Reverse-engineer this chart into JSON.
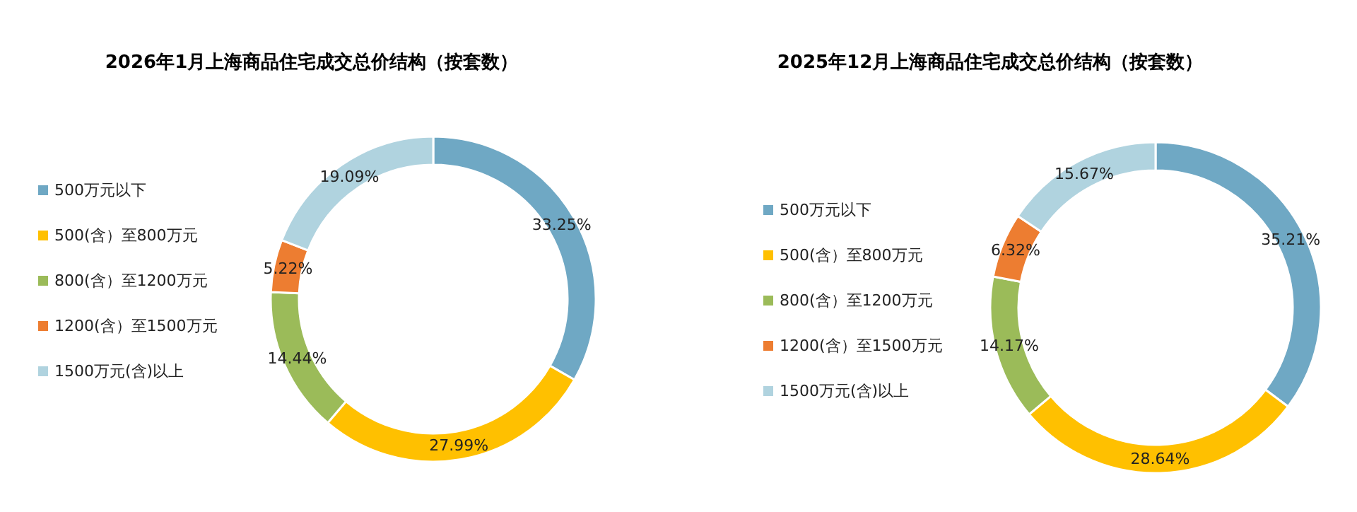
{
  "chart_data": [
    {
      "type": "donut",
      "title": "2026年1月上海商品住宅成交总价结构（按套数）",
      "categories": [
        "500万元以下",
        "500(含）至800万元",
        "800(含）至1200万元",
        "1200(含）至1500万元",
        "1500万元(含)以上"
      ],
      "values": [
        33.25,
        27.99,
        14.44,
        5.22,
        19.09
      ],
      "value_labels": [
        "33.25%",
        "27.99%",
        "14.44%",
        "5.22%",
        "19.09%"
      ],
      "colors": [
        "#6fa8c4",
        "#ffc000",
        "#9bbb59",
        "#ed7d31",
        "#b0d3df"
      ],
      "legend": "left"
    },
    {
      "type": "donut",
      "title": "2025年12月上海商品住宅成交总价结构（按套数）",
      "categories": [
        "500万元以下",
        "500(含）至800万元",
        "800(含）至1200万元",
        "1200(含）至1500万元",
        "1500万元(含)以上"
      ],
      "values": [
        35.21,
        28.64,
        14.17,
        6.32,
        15.67
      ],
      "value_labels": [
        "35.21%",
        "28.64%",
        "14.17%",
        "6.32%",
        "15.67%"
      ],
      "colors": [
        "#6fa8c4",
        "#ffc000",
        "#9bbb59",
        "#ed7d31",
        "#b0d3df"
      ],
      "legend": "left"
    }
  ]
}
